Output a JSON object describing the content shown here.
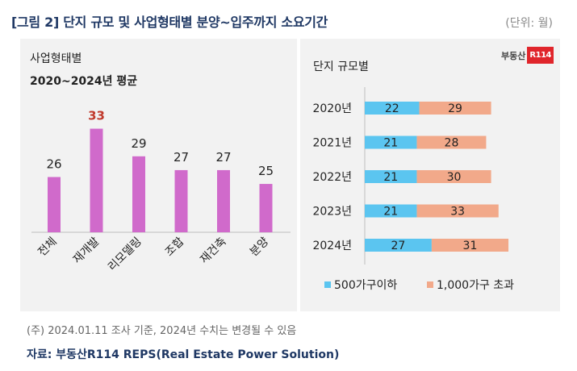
{
  "title": "[그림 2] 단지 규모 및 사업형태별 분양~입주까지 소요기간",
  "unit": "(단위: 월)",
  "logo": {
    "text": "부동산",
    "badge": "R114"
  },
  "chart_data": [
    {
      "type": "bar",
      "title": "사업형태별",
      "subtitle": "2020~2024년 평균",
      "categories": [
        "전체",
        "재개발",
        "리모델링",
        "조합",
        "재건축",
        "분양"
      ],
      "values": [
        26,
        33,
        29,
        27,
        27,
        25
      ],
      "highlight_index": 1,
      "bar_color": "#d06acb",
      "highlight_label_color": "#c0392b",
      "ylim": [
        18,
        34
      ]
    },
    {
      "type": "bar",
      "orientation": "horizontal",
      "stacked": true,
      "title": "단지 규모별",
      "categories": [
        "2020년",
        "2021년",
        "2022년",
        "2023년",
        "2024년"
      ],
      "series": [
        {
          "name": "500가구이하",
          "values": [
            22,
            21,
            21,
            21,
            27
          ],
          "color": "#5bc5f0"
        },
        {
          "name": "1,000가구 초과",
          "values": [
            29,
            28,
            30,
            33,
            31
          ],
          "color": "#f2a98a"
        }
      ]
    }
  ],
  "note": "(주) 2024.01.11 조사 기준, 2024년 수치는 변경될 수 있음",
  "source": "자료: 부동산R114 REPS(Real Estate Power Solution)"
}
